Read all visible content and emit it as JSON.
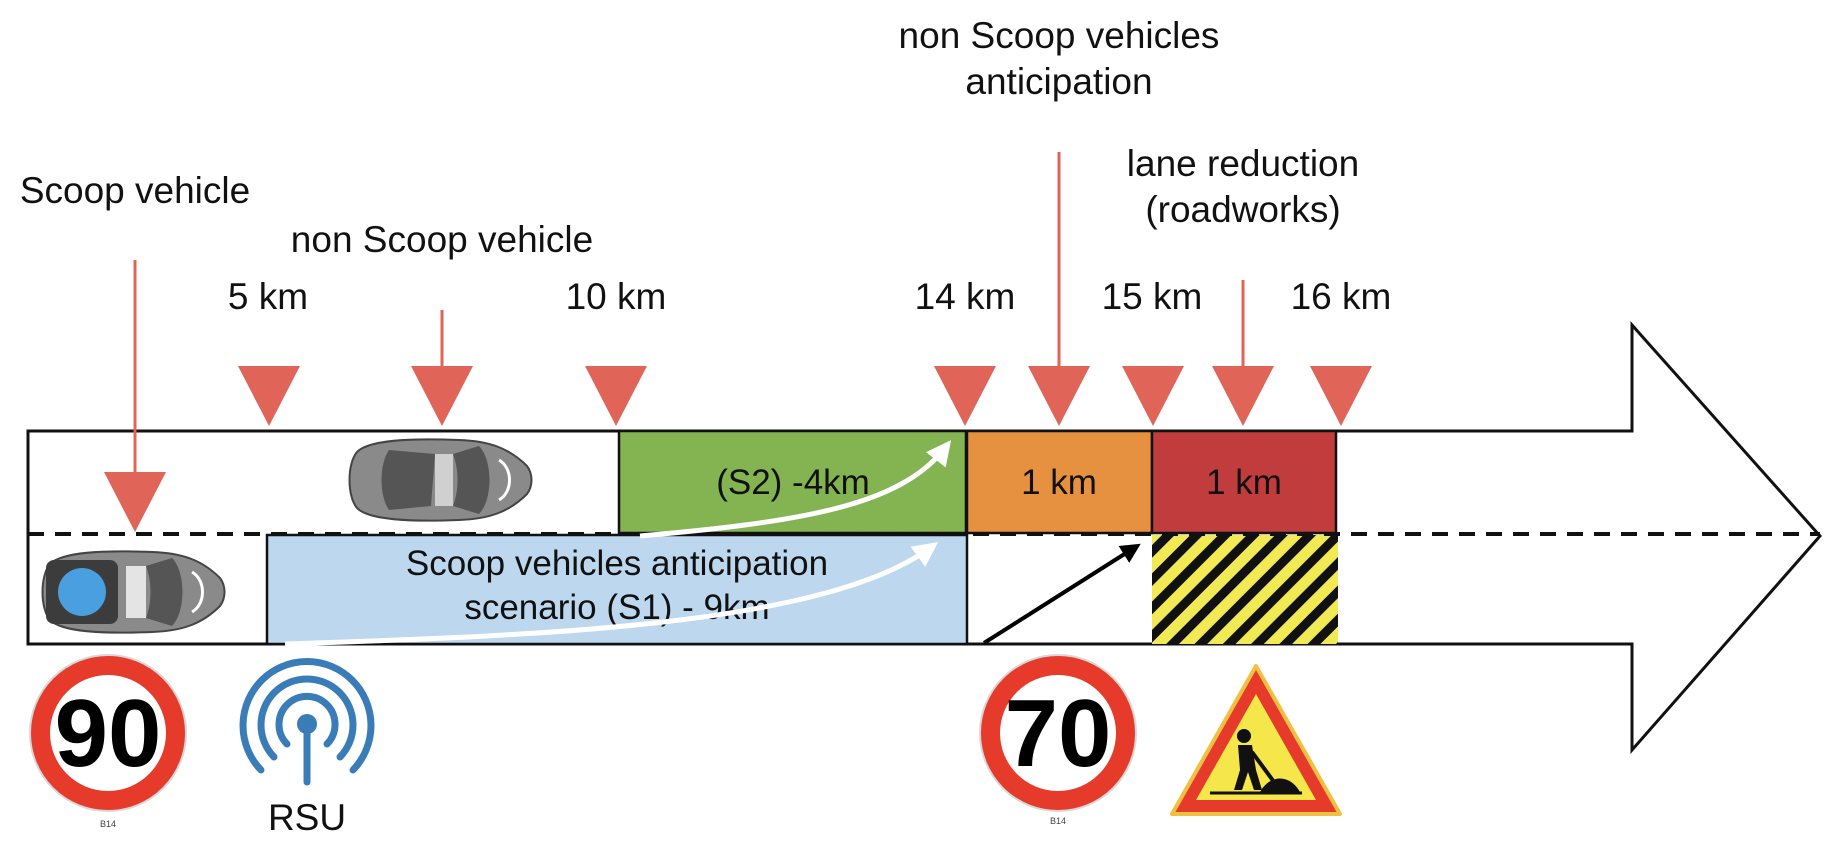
{
  "labels": {
    "scoop_vehicle": "Scoop vehicle",
    "non_scoop_vehicle": "non Scoop vehicle",
    "non_scoop_anticipation_line1": "non Scoop vehicles",
    "non_scoop_anticipation_line2": "anticipation",
    "lane_reduction_line1": "lane reduction",
    "lane_reduction_line2": "(roadworks)",
    "rsu": "RSU"
  },
  "km_markers": {
    "m5": "5 km",
    "m10": "10 km",
    "m14": "14 km",
    "m15": "15 km",
    "m16": "16 km"
  },
  "zones": {
    "s2": "(S2) -4km",
    "s1_line1": "Scoop vehicles anticipation",
    "s1_line2": "scenario (S1) - 9km",
    "orange": "1 km",
    "red": "1 km"
  },
  "signs": {
    "speed_90": "90",
    "speed_70": "70",
    "sign_code_1": "B14",
    "sign_code_2": "B14"
  },
  "icons": {
    "rsu": "antenna-icon",
    "roadworks": "roadworks-warning-sign-icon",
    "car": "car-top-view-icon"
  },
  "colors": {
    "marker": "#e06558",
    "s2_zone": "#84b351",
    "s1_zone": "#bcd7ee",
    "orange_zone": "#e5913f",
    "red_zone": "#c03c3d",
    "rsu": "#3a7cb8",
    "sign_ring": "#e63a2a"
  }
}
